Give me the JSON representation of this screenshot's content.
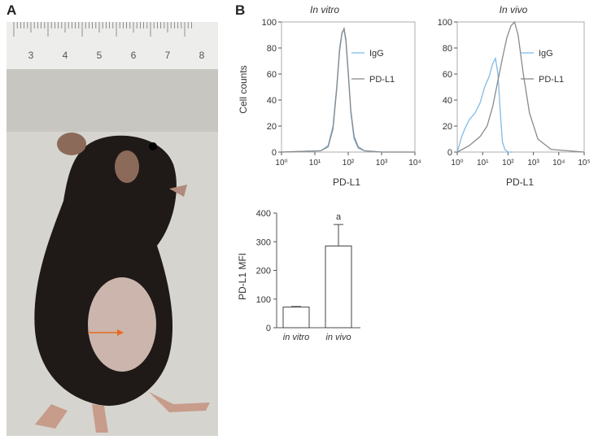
{
  "panel_labels": {
    "a": "A",
    "b": "B"
  },
  "photo": {
    "ruler_ticks": [
      "3",
      "4",
      "5",
      "6",
      "7",
      "8"
    ],
    "colors": {
      "background": "#c8c6c0",
      "ruler": "#ededeb",
      "mouse": "#1f1a17",
      "belly": "#cbb5ad",
      "arrow": "#e86a1e"
    }
  },
  "chart_data": [
    {
      "type": "line",
      "title": "In vitro",
      "xlabel": "PD-L1",
      "ylabel": "Cell counts",
      "x_scale": "log",
      "xlim": [
        1,
        10000
      ],
      "ylim": [
        0,
        100
      ],
      "x_tick_labels": [
        "10⁰",
        "10¹",
        "10²",
        "10³",
        "10⁴"
      ],
      "y_tick_labels": [
        "0",
        "20",
        "40",
        "60",
        "80",
        "100"
      ],
      "legend_position": "right",
      "series": [
        {
          "name": "IgG",
          "color": "#7fbbe8",
          "x": [
            1,
            15,
            25,
            35,
            45,
            55,
            65,
            75,
            85,
            100,
            120,
            150,
            200,
            300,
            1000,
            10000
          ],
          "y": [
            0,
            1,
            5,
            20,
            50,
            80,
            92,
            94,
            85,
            60,
            30,
            10,
            3,
            1,
            0,
            0
          ]
        },
        {
          "name": "PD-L1",
          "color": "#8a8a8a",
          "x": [
            1,
            15,
            25,
            35,
            45,
            55,
            65,
            75,
            85,
            100,
            120,
            150,
            200,
            300,
            1000,
            10000
          ],
          "y": [
            0,
            1,
            4,
            18,
            48,
            78,
            91,
            95,
            87,
            62,
            32,
            12,
            4,
            1,
            0,
            0
          ]
        }
      ]
    },
    {
      "type": "line",
      "title": "In vivo",
      "xlabel": "PD-L1",
      "ylabel": "",
      "x_scale": "log",
      "xlim": [
        1,
        100000
      ],
      "ylim": [
        0,
        100
      ],
      "x_tick_labels": [
        "10⁰",
        "10¹",
        "10²",
        "10³",
        "10⁴",
        "10⁵"
      ],
      "y_tick_labels": [
        "0",
        "20",
        "40",
        "60",
        "80",
        "100"
      ],
      "legend_position": "right",
      "series": [
        {
          "name": "IgG",
          "color": "#7fbbe8",
          "x": [
            1,
            1.5,
            2,
            3,
            5,
            8,
            12,
            18,
            25,
            32,
            40,
            50,
            60,
            75,
            100,
            150
          ],
          "y": [
            0,
            12,
            18,
            25,
            30,
            38,
            50,
            58,
            68,
            72,
            60,
            30,
            8,
            2,
            0,
            0
          ]
        },
        {
          "name": "PD-L1",
          "color": "#8a8a8a",
          "x": [
            1,
            3,
            8,
            15,
            25,
            40,
            60,
            90,
            130,
            180,
            250,
            400,
            700,
            1500,
            5000,
            100000
          ],
          "y": [
            0,
            5,
            12,
            20,
            35,
            55,
            72,
            88,
            97,
            100,
            90,
            60,
            30,
            10,
            2,
            0
          ]
        }
      ]
    },
    {
      "type": "bar",
      "title": "",
      "xlabel": "",
      "ylabel": "PD-L1 MFI",
      "categories": [
        "in vitro",
        "in vivo"
      ],
      "values": [
        72,
        285
      ],
      "errors": [
        2,
        75
      ],
      "ylim": [
        0,
        400
      ],
      "y_tick_labels": [
        "0",
        "100",
        "200",
        "300",
        "400"
      ],
      "annotation": "a"
    }
  ]
}
